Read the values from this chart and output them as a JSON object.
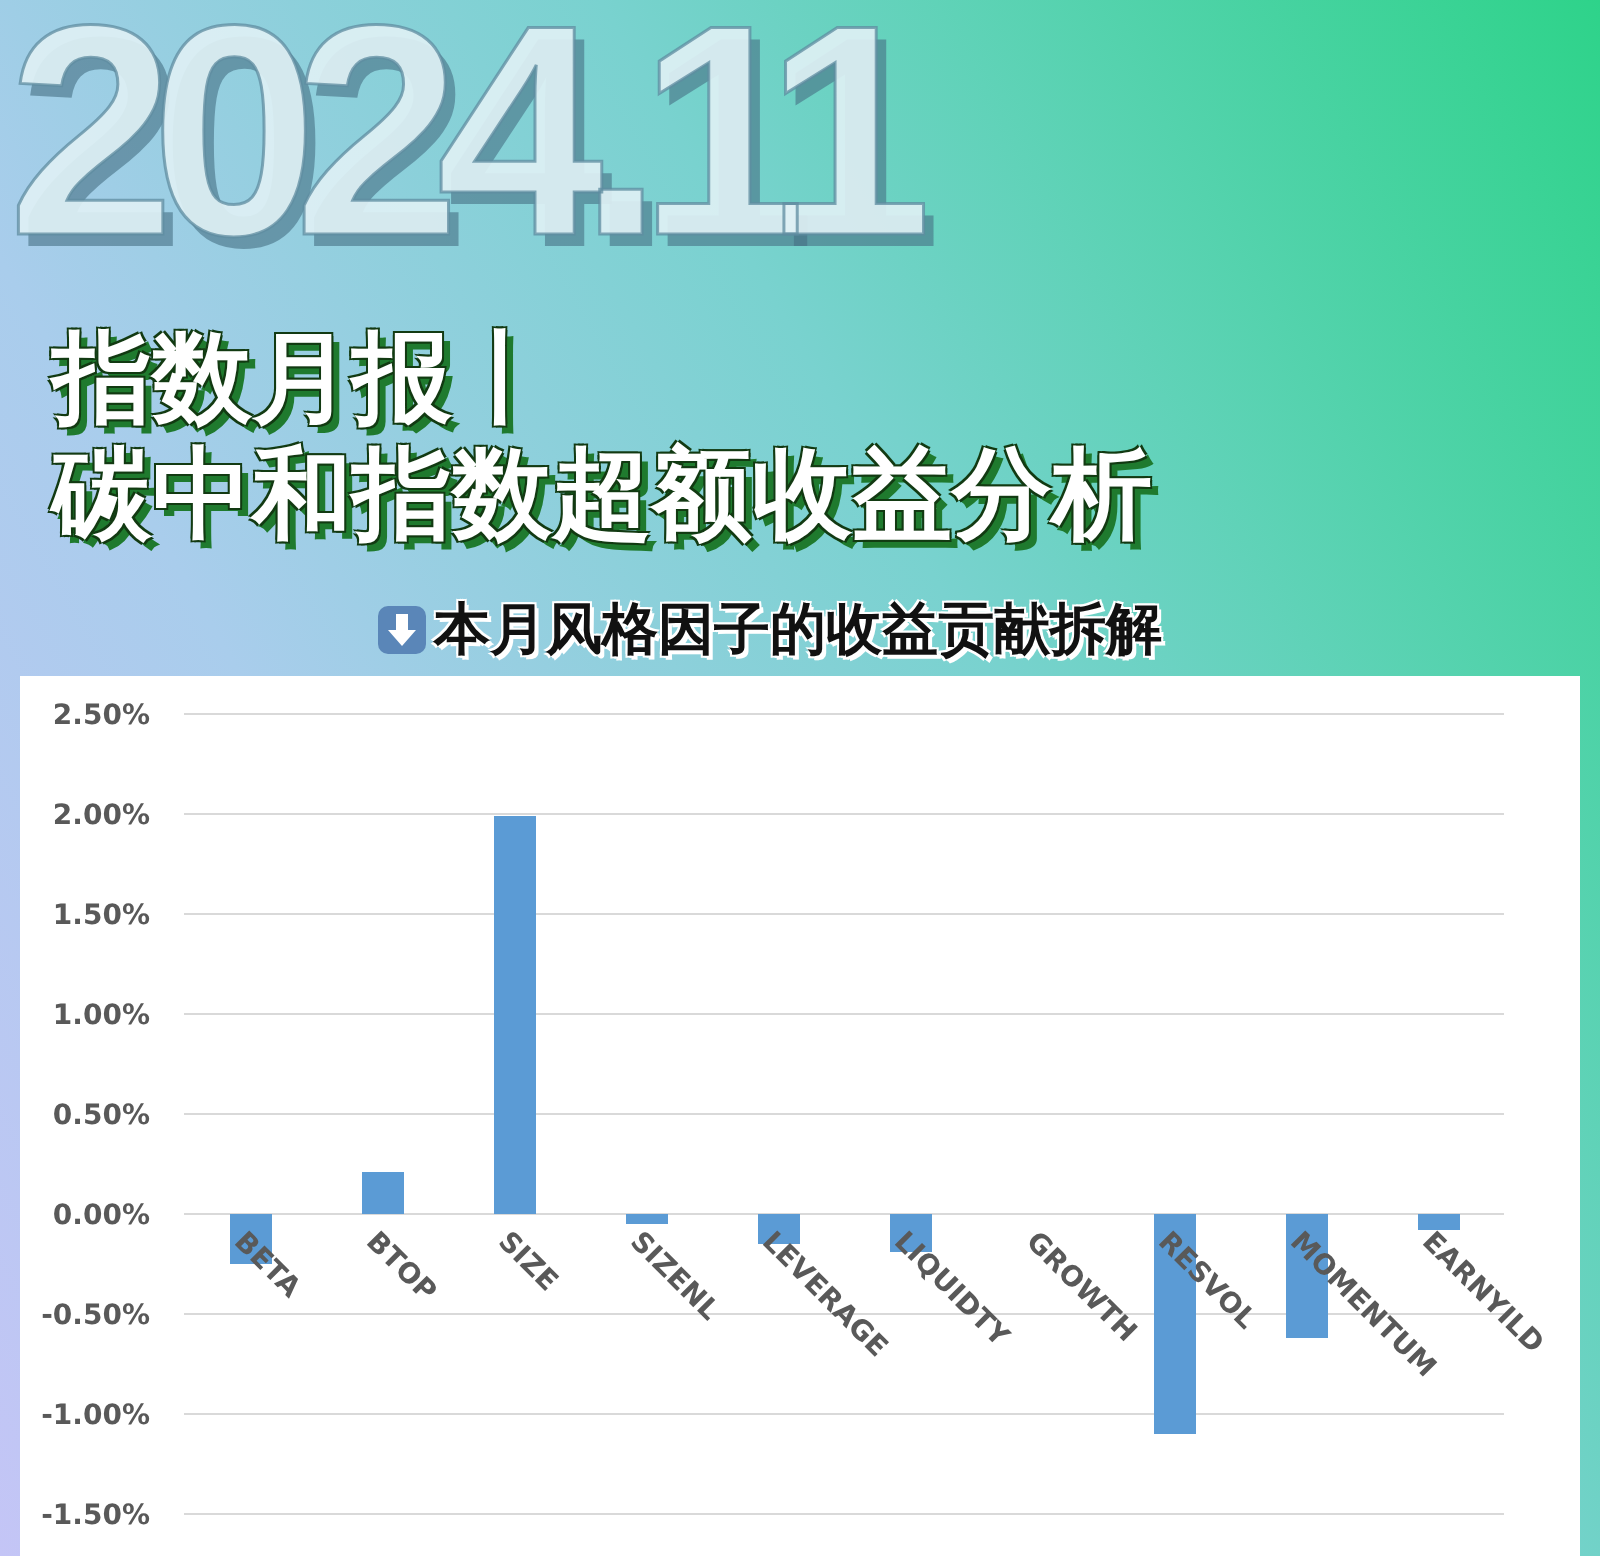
{
  "chart_data": {
    "type": "bar",
    "title": "指数月报丨",
    "subtitle": "碳中和指数超额收益分析",
    "annotations": [
      "2024.11",
      "本月风格因子的收益贡献拆解"
    ],
    "categories": [
      "BETA",
      "BTOP",
      "SIZE",
      "SIZENL",
      "LEVERAGE",
      "LIQUIDTY",
      "GROWTH",
      "RESVOL",
      "MOMENTUM",
      "EARNYILD"
    ],
    "values": [
      -0.25,
      0.21,
      1.99,
      -0.05,
      -0.15,
      -0.19,
      0,
      -1.1,
      -0.62,
      -0.08
    ],
    "color": "#5b9bd5",
    "ylim": [
      -1.5,
      2.5
    ],
    "yticks": [
      {
        "value": -1.5,
        "label": "-1.50%"
      },
      {
        "value": -1,
        "label": "-1.00%"
      },
      {
        "value": -0.5,
        "label": "-0.50%"
      },
      {
        "value": 0,
        "label": "0.00%"
      },
      {
        "value": 0.5,
        "label": "0.50%"
      },
      {
        "value": 1,
        "label": "1.00%"
      },
      {
        "value": 1.5,
        "label": "1.50%"
      },
      {
        "value": 2,
        "label": "2.00%"
      },
      {
        "value": 2.5,
        "label": "2.50%"
      }
    ],
    "grid": "y"
  }
}
